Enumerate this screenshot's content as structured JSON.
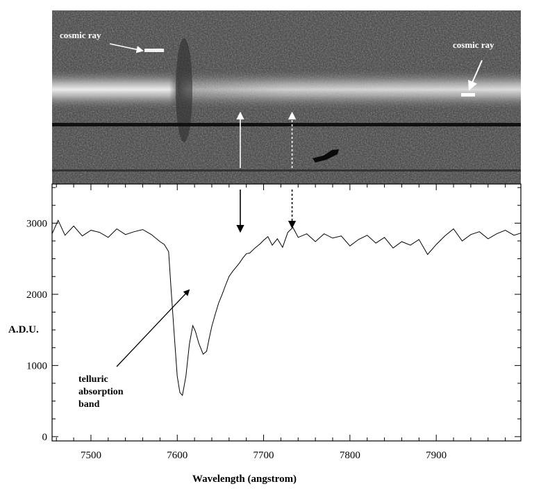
{
  "chart_data": {
    "type": "line",
    "title": "",
    "xlabel": "Wavelength (angstrom)",
    "ylabel": "A.D.U.",
    "xlim": [
      7455,
      7998
    ],
    "ylim": [
      -60,
      3550
    ],
    "x_ticks": [
      7500,
      7600,
      7700,
      7800,
      7900
    ],
    "y_ticks": [
      0,
      1000,
      2000,
      3000
    ],
    "x_minor_step": 20,
    "y_minor_step": 250,
    "grid": false,
    "legend": "none",
    "series": [
      {
        "color": "#000000",
        "x": [
          7455,
          7462,
          7470,
          7480,
          7490,
          7500,
          7510,
          7520,
          7530,
          7540,
          7550,
          7560,
          7570,
          7580,
          7585,
          7590,
          7593,
          7597,
          7600,
          7603,
          7606,
          7610,
          7614,
          7618,
          7621,
          7625,
          7630,
          7634,
          7637,
          7640,
          7644,
          7648,
          7652,
          7656,
          7660,
          7664,
          7668,
          7672,
          7676,
          7680,
          7684,
          7690,
          7696,
          7700,
          7705,
          7710,
          7716,
          7722,
          7728,
          7734,
          7740,
          7750,
          7760,
          7770,
          7780,
          7790,
          7800,
          7810,
          7820,
          7830,
          7840,
          7850,
          7860,
          7870,
          7880,
          7890,
          7900,
          7910,
          7920,
          7930,
          7940,
          7950,
          7960,
          7970,
          7980,
          7990,
          7998
        ],
        "y": [
          2850,
          3040,
          2830,
          2960,
          2820,
          2900,
          2870,
          2800,
          2920,
          2840,
          2880,
          2910,
          2840,
          2740,
          2700,
          2600,
          2050,
          1350,
          850,
          620,
          580,
          850,
          1300,
          1560,
          1480,
          1310,
          1160,
          1200,
          1380,
          1550,
          1720,
          1880,
          2000,
          2130,
          2250,
          2320,
          2380,
          2440,
          2510,
          2570,
          2580,
          2650,
          2710,
          2760,
          2810,
          2690,
          2780,
          2660,
          2870,
          2940,
          2800,
          2850,
          2740,
          2850,
          2790,
          2820,
          2680,
          2770,
          2830,
          2720,
          2800,
          2650,
          2740,
          2690,
          2770,
          2560,
          2700,
          2820,
          2920,
          2750,
          2840,
          2880,
          2780,
          2850,
          2900,
          2830,
          2860
        ]
      }
    ],
    "annotations": {
      "telluric": "telluric\nabsorption\nband",
      "cosmic_ray_left": "cosmic ray",
      "cosmic_ray_right": "cosmic ray"
    },
    "marker_arrows": [
      {
        "x": 7673,
        "style": "solid"
      },
      {
        "x": 7733,
        "style": "dashed"
      }
    ]
  },
  "image_panel": {
    "background": "#3a3a3a",
    "band_color": "#e6e6e6",
    "dark_line_color": "#111111",
    "cosmic_ray_color": "#ffffff"
  }
}
